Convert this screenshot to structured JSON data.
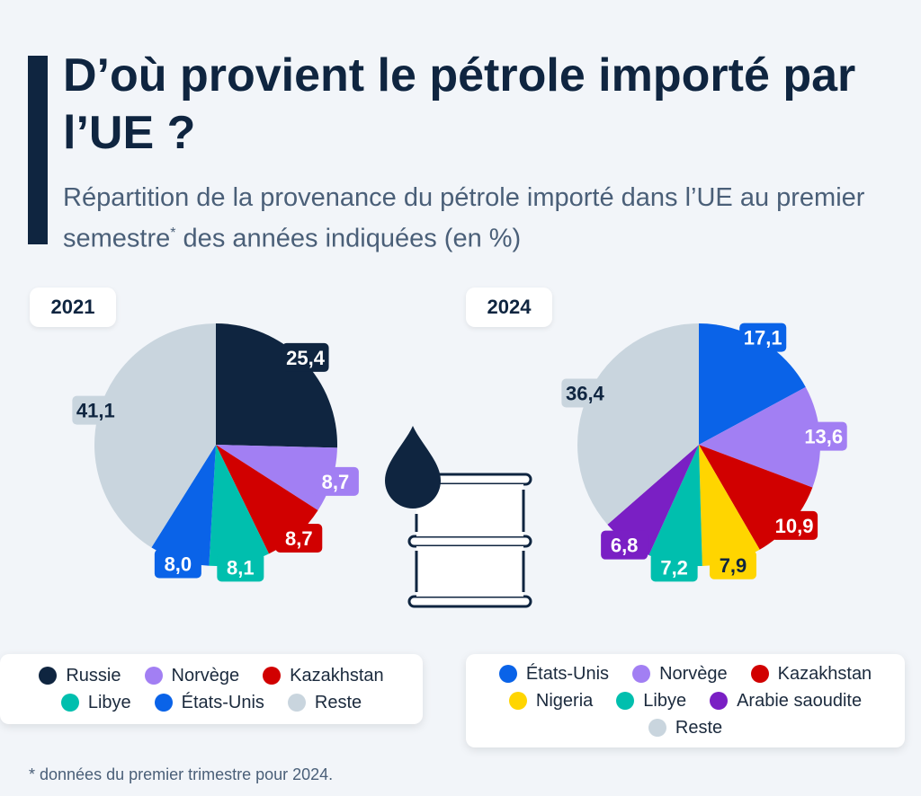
{
  "title": "D’où provient le pétrole importé par l’UE ?",
  "subtitle_pre": "Répartition de la provenance du pétrole importé dans l’UE au premier semestre",
  "subtitle_sup": "*",
  "subtitle_post": " des années indiquées (en %)",
  "footnote": "* données du premier trimestre pour 2024.",
  "icon": "oil-barrel-drop-icon",
  "chart_data": [
    {
      "type": "pie",
      "title": "2021",
      "unit": "%",
      "labels": [
        "Russie",
        "Norvège",
        "Kazakhstan",
        "Libye",
        "États-Unis",
        "Reste"
      ],
      "values": [
        25.4,
        8.7,
        8.7,
        8.1,
        8.0,
        41.1
      ],
      "value_labels": [
        "25,4",
        "8,7",
        "8,7",
        "8,1",
        "8,0",
        "41,1"
      ],
      "colors": [
        "#0f2540",
        "#a27ff3",
        "#d10000",
        "#00bfae",
        "#0a63e8",
        "#c9d5de"
      ],
      "start": "top",
      "direction": "clockwise",
      "legend": "bottom"
    },
    {
      "type": "pie",
      "title": "2024",
      "unit": "%",
      "labels": [
        "États-Unis",
        "Norvège",
        "Kazakhstan",
        "Nigeria",
        "Libye",
        "Arabie saoudite",
        "Reste"
      ],
      "values": [
        17.1,
        13.6,
        10.9,
        7.9,
        7.2,
        6.8,
        36.4
      ],
      "value_labels": [
        "17,1",
        "13,6",
        "10,9",
        "7,9",
        "7,2",
        "6,8",
        "36,4"
      ],
      "colors": [
        "#0a63e8",
        "#a27ff3",
        "#d10000",
        "#ffd500",
        "#00bfae",
        "#7a1fc4",
        "#c9d5de"
      ],
      "start": "top",
      "direction": "clockwise",
      "legend": "bottom"
    }
  ]
}
